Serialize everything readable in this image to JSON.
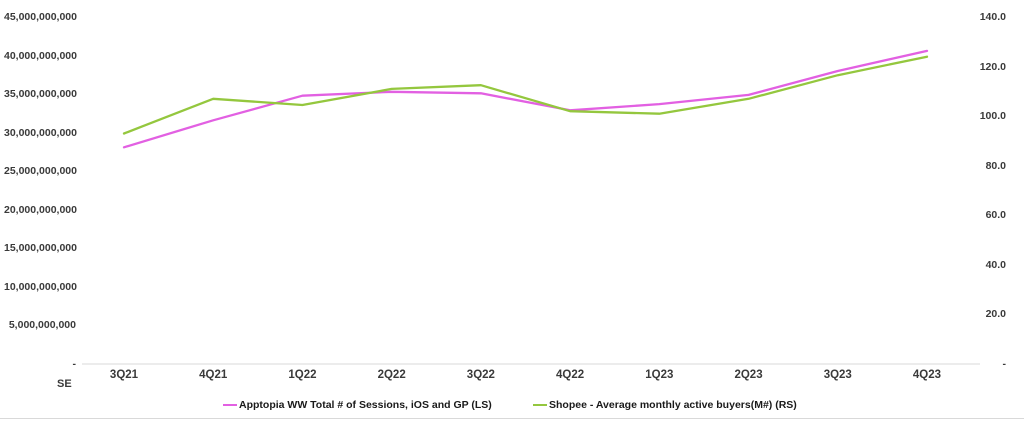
{
  "chart_data": {
    "type": "line",
    "title": "",
    "grid": false,
    "legend_position": "bottom",
    "categories": [
      "3Q21",
      "4Q21",
      "1Q22",
      "2Q22",
      "3Q22",
      "4Q22",
      "1Q23",
      "2Q23",
      "3Q23",
      "4Q23"
    ],
    "series": [
      {
        "name": "Apptopia WW Total # of Sessions, iOS and GP (LS)",
        "axis": "left",
        "color": "#e260e2",
        "values": [
          28100000000,
          31600000000,
          34800000000,
          35300000000,
          35100000000,
          32900000000,
          33700000000,
          34900000000,
          38000000000,
          40600000000
        ]
      },
      {
        "name": "Shopee - Average monthly active buyers(M#) (RS)",
        "axis": "right",
        "color": "#94c73e",
        "values": [
          93.0,
          107.0,
          104.5,
          111.0,
          112.5,
          102.0,
          101.0,
          107.0,
          116.5,
          124.0
        ]
      }
    ],
    "left_axis": {
      "min": 0,
      "max": 45000000000,
      "tick_labels": [
        "45,000,000,000",
        "40,000,000,000",
        "35,000,000,000",
        "30,000,000,000",
        "25,000,000,000",
        "20,000,000,000",
        "15,000,000,000",
        "10,000,000,000",
        "5,000,000,000",
        "-"
      ]
    },
    "right_axis": {
      "min": 0,
      "max": 140,
      "tick_labels": [
        "140.0",
        "120.0",
        "100.0",
        "80.0",
        "60.0",
        "40.0",
        "20.0",
        "-"
      ]
    },
    "corner_label": "SE",
    "axis_line_color": "#d9d9d9"
  }
}
